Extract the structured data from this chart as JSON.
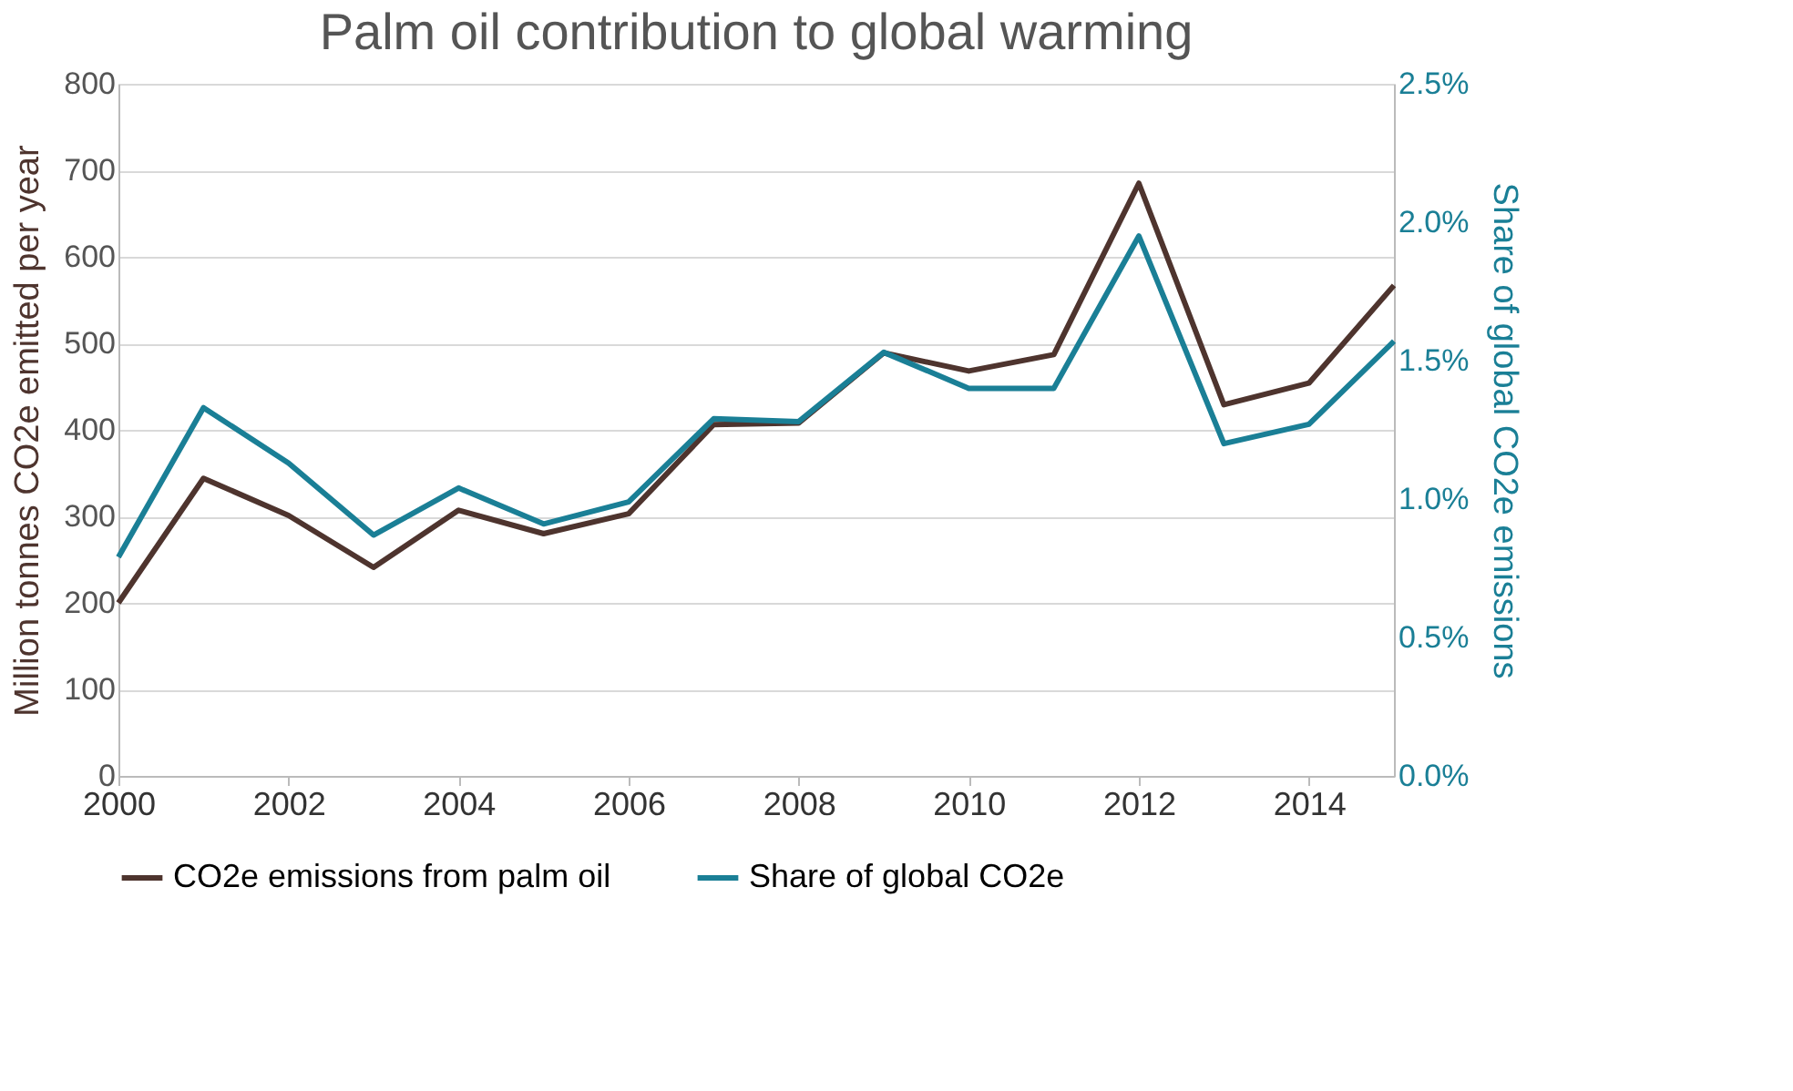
{
  "chart_data": {
    "type": "line",
    "title": "Palm oil contribution to global warming",
    "ylabel": "Million tonnes CO2e emitted per year",
    "y2label": "Share of global CO2e emissions",
    "x": [
      2000,
      2001,
      2002,
      2003,
      2004,
      2005,
      2006,
      2007,
      2008,
      2009,
      2010,
      2011,
      2012,
      2013,
      2014,
      2015
    ],
    "series": [
      {
        "name": "CO2e emissions from palm oil",
        "color": "#4e342e",
        "values": [
          200,
          344,
          301,
          241,
          307,
          280,
          303,
          406,
          408,
          489,
          468,
          487,
          685,
          429,
          454,
          567
        ]
      },
      {
        "name": "Share of global CO2e",
        "color": "#1a7f96",
        "axis": "y2",
        "values": [
          0.79,
          1.33,
          1.13,
          0.87,
          1.04,
          0.91,
          0.99,
          1.29,
          1.28,
          1.53,
          1.4,
          1.4,
          1.95,
          1.2,
          1.27,
          1.57
        ]
      }
    ],
    "xlim": [
      2000,
      2015
    ],
    "xticks": [
      2000,
      2002,
      2004,
      2006,
      2008,
      2010,
      2012,
      2014
    ],
    "ylim": [
      0,
      800
    ],
    "yticks": [
      0,
      100,
      200,
      300,
      400,
      500,
      600,
      700,
      800
    ],
    "y2lim": [
      0,
      2.5
    ],
    "y2ticks": [
      {
        "value": 0,
        "label": "0.0%"
      },
      {
        "value": 0.5,
        "label": "0.5%"
      },
      {
        "value": 1,
        "label": "1.0%"
      },
      {
        "value": 1.5,
        "label": "1.5%"
      },
      {
        "value": 2,
        "label": "2.0%"
      },
      {
        "value": 2.5,
        "label": "2.5%"
      }
    ],
    "grid": "y",
    "legend": "bottom",
    "line_style": "solid",
    "marker": "none"
  }
}
